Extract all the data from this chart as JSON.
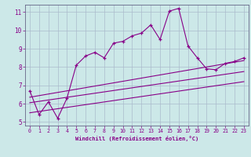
{
  "xlabel": "Windchill (Refroidissement éolien,°C)",
  "background_color": "#cce8e8",
  "grid_color": "#aabbcc",
  "line_color": "#880088",
  "xlim": [
    -0.5,
    23.5
  ],
  "ylim": [
    4.8,
    11.4
  ],
  "yticks": [
    5,
    6,
    7,
    8,
    9,
    10,
    11
  ],
  "xticks": [
    0,
    1,
    2,
    3,
    4,
    5,
    6,
    7,
    8,
    9,
    10,
    11,
    12,
    13,
    14,
    15,
    16,
    17,
    18,
    19,
    20,
    21,
    22,
    23
  ],
  "series1_x": [
    0,
    1,
    2,
    3,
    4,
    5,
    6,
    7,
    8,
    9,
    10,
    11,
    12,
    13,
    14,
    15,
    16,
    17,
    18,
    19,
    20,
    21,
    22,
    23
  ],
  "series1_y": [
    6.7,
    5.4,
    6.1,
    5.2,
    6.3,
    8.1,
    8.6,
    8.8,
    8.5,
    9.3,
    9.4,
    9.7,
    9.85,
    10.3,
    9.5,
    11.05,
    11.2,
    9.15,
    8.5,
    7.9,
    7.85,
    8.2,
    8.3,
    8.5
  ],
  "series2_x": [
    0,
    23
  ],
  "series2_y": [
    6.35,
    8.35
  ],
  "series3_x": [
    0,
    23
  ],
  "series3_y": [
    6.05,
    7.75
  ],
  "series4_x": [
    0,
    23
  ],
  "series4_y": [
    5.5,
    7.2
  ]
}
